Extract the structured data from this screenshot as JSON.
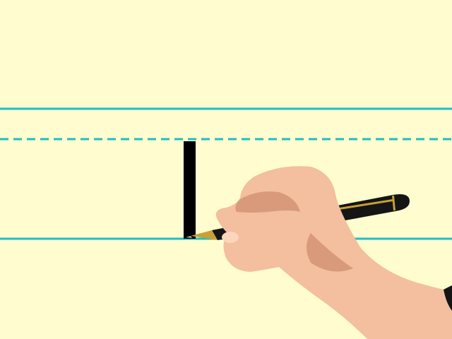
{
  "scene": {
    "description_label": "",
    "colors": {
      "paper": "#FFFDD0",
      "guide_line": "#1EBEC3",
      "stroke": "#000000",
      "skin": "#F3BF9E",
      "skin_shadow": "#D89A7A",
      "skin_highlight": "#FBD5BC",
      "pen_body": "#151515",
      "pen_gold": "#C9A035",
      "pen_tip": "#B8B8B8"
    },
    "guide_lines": [
      "top-line",
      "midline-dashed",
      "baseline"
    ],
    "letter_being_written": "stroke-only",
    "icons": [
      "hand-icon",
      "pen-icon"
    ]
  }
}
